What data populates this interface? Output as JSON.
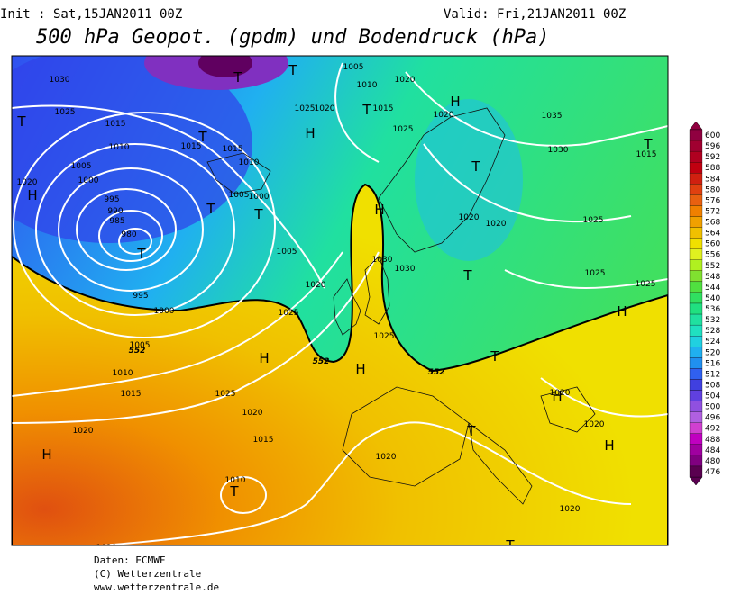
{
  "header": {
    "init": "Init : Sat,15JAN2011 00Z",
    "valid": "Valid: Fri,21JAN2011 00Z",
    "title": "500 hPa Geopot. (gpdm) und Bodendruck (hPa)"
  },
  "legend": {
    "values": [
      600,
      596,
      592,
      588,
      584,
      580,
      576,
      572,
      568,
      564,
      560,
      556,
      552,
      548,
      544,
      540,
      536,
      532,
      528,
      524,
      520,
      516,
      512,
      508,
      504,
      500,
      496,
      492,
      488,
      484,
      480,
      476
    ],
    "colors": [
      "#900040",
      "#a00030",
      "#b00020",
      "#c00010",
      "#d02010",
      "#e04010",
      "#e86010",
      "#f08000",
      "#f0a000",
      "#f0c000",
      "#f0e000",
      "#e0f020",
      "#b0f020",
      "#80e030",
      "#50e040",
      "#30e060",
      "#20e080",
      "#20e0a0",
      "#20e0c0",
      "#20d0e0",
      "#20b0f0",
      "#2090f0",
      "#3060f0",
      "#4040e0",
      "#6040e0",
      "#9050e0",
      "#b060e0",
      "#d040d0",
      "#c000c0",
      "#a000a0",
      "#800080",
      "#5a0050"
    ]
  },
  "isobar_labels": [
    1030,
    1025,
    1015,
    1010,
    1005,
    1000,
    995,
    990,
    985,
    980,
    1020,
    995,
    1000,
    1005,
    1010,
    1015,
    1020,
    1020,
    1025,
    1020,
    1015,
    1010,
    1015,
    1015,
    1010,
    1005,
    1000,
    1005,
    1020,
    1025,
    1005,
    1010,
    1020,
    1025,
    1020,
    1015,
    1025,
    1020,
    1035,
    1030,
    1015,
    1020,
    1020,
    1025,
    1025,
    1025,
    1030,
    1030,
    1025,
    1020,
    1020,
    1020,
    1020
  ],
  "pressure_centers": [
    "T",
    "T",
    "H",
    "T",
    "T",
    "H",
    "T",
    "T",
    "H",
    "T",
    "T",
    "H",
    "T",
    "T",
    "T",
    "H",
    "H",
    "H",
    "T",
    "H",
    "T",
    "H",
    "H",
    "T",
    "T"
  ],
  "contour_labels": [
    552,
    552,
    552
  ],
  "footer": [
    "Daten: ECMWF",
    "(C) Wetterzentrale",
    "www.wetterzentrale.de"
  ]
}
